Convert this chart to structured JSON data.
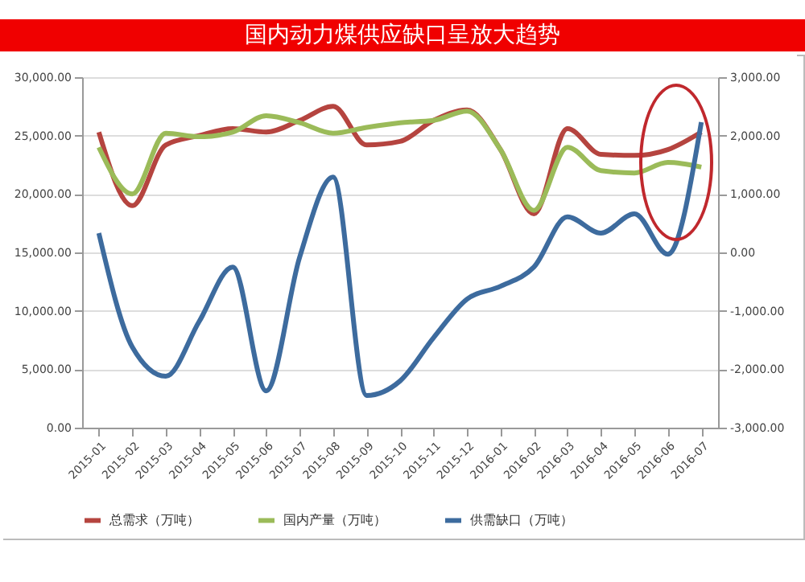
{
  "chart_data": {
    "type": "line",
    "title": "国内动力煤供应缺口呈放大趋势",
    "categories": [
      "2015-01",
      "2015-02",
      "2015-03",
      "2015-04",
      "2015-05",
      "2015-06",
      "2015-07",
      "2015-08",
      "2015-09",
      "2015-10",
      "2015-11",
      "2015-12",
      "2016-01",
      "2016-02",
      "2016-03",
      "2016-04",
      "2016-05",
      "2016-06",
      "2016-07"
    ],
    "series": [
      {
        "name": "总需求（万吨）",
        "color": "#b5443f",
        "values": [
          25300,
          19000,
          24200,
          25000,
          25600,
          25300,
          26300,
          27500,
          24200,
          24500,
          26300,
          27200,
          23800,
          18300,
          25600,
          23400,
          23300,
          23800,
          25300
        ]
      },
      {
        "name": "国内产量（万吨）",
        "color": "#9bbb59",
        "values": [
          24000,
          20000,
          25200,
          24900,
          25300,
          26700,
          26100,
          25200,
          25700,
          26100,
          26300,
          27100,
          23800,
          18600,
          24000,
          22000,
          21800,
          22700,
          22300
        ]
      },
      {
        "name": "供需缺口（万吨）",
        "color": "#3d6b9e",
        "axis": "y2",
        "values": [
          330,
          -1620,
          -2120,
          -1180,
          -250,
          -2370,
          -80,
          1290,
          -2450,
          -2200,
          -1460,
          -800,
          -580,
          -250,
          610,
          330,
          660,
          -30,
          2230
        ]
      }
    ],
    "ylim": [
      0,
      30000
    ],
    "yticks": [
      {
        "value": 0,
        "label": "0.00"
      },
      {
        "value": 5000,
        "label": "5,000.00"
      },
      {
        "value": 10000,
        "label": "10,000.00"
      },
      {
        "value": 15000,
        "label": "15,000.00"
      },
      {
        "value": 20000,
        "label": "20,000.00"
      },
      {
        "value": 25000,
        "label": "25,000.00"
      },
      {
        "value": 30000,
        "label": "30,000.00"
      }
    ],
    "y2lim": [
      -3000,
      3000
    ],
    "y2ticks": [
      {
        "value": -3000,
        "label": "-3,000.00"
      },
      {
        "value": -2000,
        "label": "-2,000.00"
      },
      {
        "value": -1000,
        "label": "-1,000.00"
      },
      {
        "value": 0,
        "label": "0.00"
      },
      {
        "value": 1000,
        "label": "1,000.00"
      },
      {
        "value": 2000,
        "label": "2,000.00"
      },
      {
        "value": 3000,
        "label": "3,000.00"
      }
    ],
    "grid": "y",
    "legend": "bottom",
    "marker": "none",
    "line_style": "solid"
  }
}
